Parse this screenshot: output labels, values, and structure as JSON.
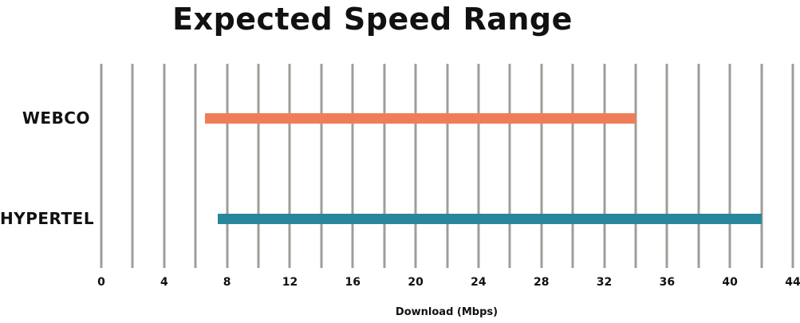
{
  "chart_data": {
    "type": "bar",
    "subtype": "horizontal-range-bars",
    "title": "Expected Speed Range",
    "xlabel": "Download (Mbps)",
    "ylabel": "",
    "categories": [
      "WEBCO",
      "HYPERTEL"
    ],
    "series": [
      {
        "name": "WEBCO",
        "range_mbps": [
          6.6,
          34
        ],
        "color": "#EF7D57"
      },
      {
        "name": "HYPERTEL",
        "range_mbps": [
          7.4,
          42
        ],
        "color": "#28879B"
      }
    ],
    "xlim": [
      0,
      44
    ],
    "gridline_step": 2,
    "tick_label_step": 4,
    "tick_labels": [
      "0",
      "4",
      "8",
      "12",
      "16",
      "20",
      "24",
      "28",
      "32",
      "36",
      "40",
      "44"
    ],
    "grid": "vertical-only",
    "legend": "none",
    "colors": {
      "gridline": "#A09C98",
      "text": "#111111",
      "background": "#FFFFFF"
    }
  }
}
